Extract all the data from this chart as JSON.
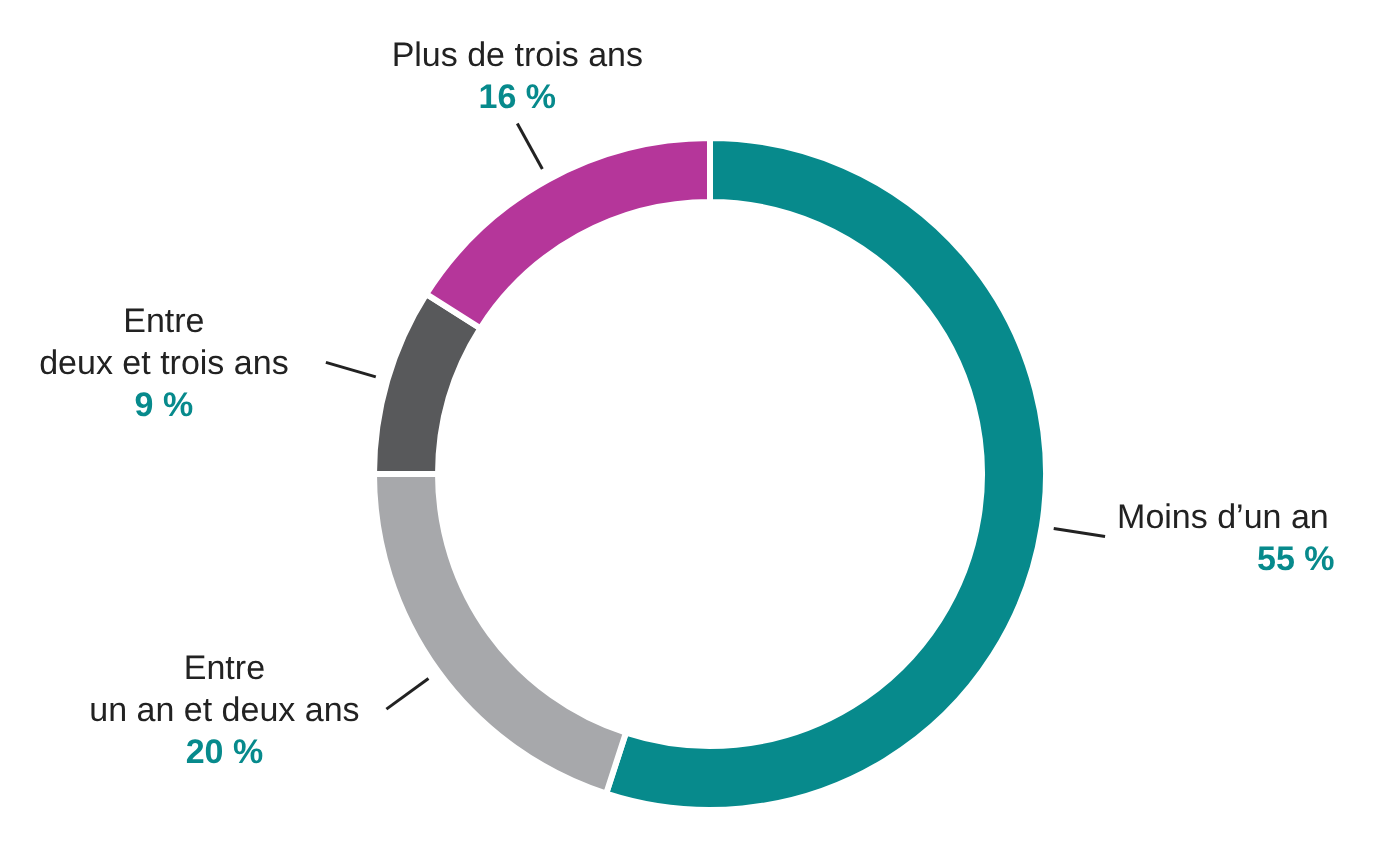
{
  "chart_data": {
    "type": "donut",
    "categories": [
      "Moins d’un an",
      "Entre\nun an et deux ans",
      "Entre\ndeux et trois ans",
      "Plus de trois ans"
    ],
    "values": [
      55,
      20,
      9,
      16
    ],
    "value_labels": [
      "55 %",
      "20 %",
      "9 %",
      "16 %"
    ],
    "colors": [
      "#078a8c",
      "#a7a8ab",
      "#58595b",
      "#b5369a"
    ]
  }
}
